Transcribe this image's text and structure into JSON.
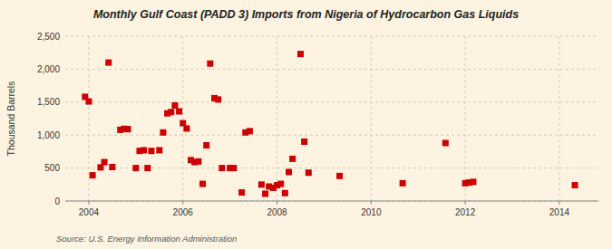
{
  "chart_data": {
    "type": "scatter",
    "title": "Monthly Gulf Coast (PADD 3) Imports from Nigeria of Hydrocarbon Gas Liquids",
    "y_label": "Thousand Barrels",
    "source": "Source: U.S. Energy Information Administration",
    "color": "#cc0000",
    "marker": "square",
    "grid": true,
    "xlim": [
      2003.5,
      2014.83
    ],
    "ylim": [
      0,
      2500
    ],
    "xticks": [
      2004,
      2006,
      2008,
      2010,
      2012,
      2014
    ],
    "yticks": [
      0,
      500,
      {
        "value": 1000,
        "label": "1,000"
      },
      {
        "value": 1500,
        "label": "1,500"
      },
      {
        "value": 2000,
        "label": "2,000"
      },
      {
        "value": 2500,
        "label": "2,500"
      }
    ],
    "x": [
      2003.92,
      2004.0,
      2004.08,
      2004.25,
      2004.33,
      2004.42,
      2004.5,
      2004.67,
      2004.75,
      2004.83,
      2005.0,
      2005.08,
      2005.17,
      2005.25,
      2005.33,
      2005.5,
      2005.58,
      2005.67,
      2005.75,
      2005.83,
      2005.92,
      2006.0,
      2006.08,
      2006.17,
      2006.25,
      2006.33,
      2006.42,
      2006.5,
      2006.58,
      2006.67,
      2006.75,
      2006.83,
      2007.0,
      2007.08,
      2007.25,
      2007.33,
      2007.42,
      2007.67,
      2007.75,
      2007.83,
      2007.92,
      2008.0,
      2008.08,
      2008.17,
      2008.25,
      2008.33,
      2008.5,
      2008.58,
      2008.67,
      2009.33,
      2010.67,
      2011.58,
      2012.0,
      2012.08,
      2012.17,
      2014.33
    ],
    "values": [
      1580,
      1510,
      390,
      510,
      590,
      2100,
      515,
      1080,
      1095,
      1090,
      500,
      760,
      770,
      500,
      760,
      770,
      1040,
      1330,
      1350,
      1450,
      1360,
      1180,
      1100,
      620,
      590,
      600,
      260,
      845,
      2085,
      1560,
      1540,
      500,
      500,
      500,
      130,
      1040,
      1060,
      250,
      110,
      220,
      200,
      240,
      260,
      120,
      440,
      640,
      2230,
      900,
      430,
      380,
      270,
      880,
      270,
      280,
      290,
      240
    ]
  }
}
